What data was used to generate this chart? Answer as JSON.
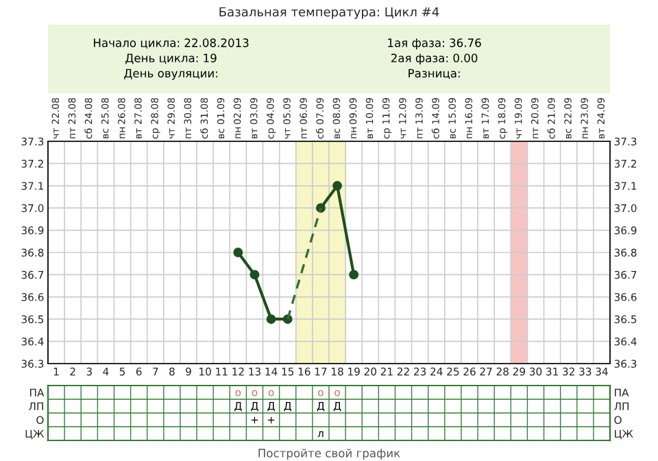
{
  "chart_data": [
    {
      "type": "line",
      "title": "Базальная температура: Цикл #4",
      "annotations": [
        "Начало цикла: 22.08.2013",
        "День цикла: 19",
        "День овуляции:",
        "1ая фаза: 36.76",
        "2ая фаза: 0.00",
        "Разница:",
        "Постройте свой график",
        "22.08",
        "23.08",
        "24.08",
        "25.08",
        "26.08",
        "27.08",
        "28.08",
        "29.08",
        "30.08",
        "31.08",
        "01.09",
        "02.09",
        "03.09",
        "04.09",
        "05.09",
        "06.09",
        "07.09",
        "08.09",
        "09.09",
        "10.09",
        "11.09",
        "12.09",
        "13.09",
        "14.09",
        "15.09",
        "16.09",
        "17.09",
        "18.09",
        "19.09",
        "20.09",
        "21.09",
        "22.09",
        "23.09",
        "24.09",
        "чт",
        "пт",
        "сб",
        "вс",
        "пн",
        "вт",
        "ср",
        "чт",
        "пт",
        "сб",
        "вс",
        "пн",
        "вт",
        "ср",
        "чт",
        "пт",
        "сб",
        "вс",
        "пн",
        "вт",
        "ср",
        "чт",
        "пт",
        "сб",
        "вс",
        "пн",
        "вт",
        "ср",
        "чт",
        "пт",
        "сб",
        "вс",
        "пн",
        "вт"
      ],
      "categories": [
        "1",
        "2",
        "3",
        "4",
        "5",
        "6",
        "7",
        "8",
        "9",
        "10",
        "11",
        "12",
        "13",
        "14",
        "15",
        "16",
        "17",
        "18",
        "19",
        "20",
        "21",
        "22",
        "23",
        "24",
        "25",
        "26",
        "27",
        "28",
        "29",
        "30",
        "31",
        "32",
        "33",
        "34"
      ],
      "series": [
        {
          "type": "line",
          "color": "#1f4f1f",
          "marker": "circle",
          "line_style": "solid",
          "values": [
            null,
            null,
            null,
            null,
            null,
            null,
            null,
            null,
            null,
            null,
            null,
            36.8,
            36.7,
            36.5,
            36.5,
            null,
            37.0,
            37.1,
            36.7,
            null,
            null,
            null,
            null,
            null,
            null,
            null,
            null,
            null,
            null,
            null,
            null,
            null,
            null,
            null
          ]
        },
        {
          "type": "line",
          "color": "#3a6a3a",
          "marker": "none",
          "line_style": "dashed",
          "x": [
            "15",
            "17"
          ],
          "values": [
            36.5,
            37.0
          ]
        }
      ],
      "ylim": [
        36.3,
        37.3
      ],
      "yticks": [
        {
          "value": 36.3,
          "label": "36.3"
        },
        {
          "value": 36.4,
          "label": "36.4"
        },
        {
          "value": 36.5,
          "label": "36.5"
        },
        {
          "value": 36.6,
          "label": "36.6"
        },
        {
          "value": 36.7,
          "label": "36.7"
        },
        {
          "value": 36.8,
          "label": "36.8"
        },
        {
          "value": 36.9,
          "label": "36.9"
        },
        {
          "value": 37.0,
          "label": "37.0"
        },
        {
          "value": 37.1,
          "label": "37.1"
        },
        {
          "value": 37.2,
          "label": "37.2"
        },
        {
          "value": 37.3,
          "label": "37.3"
        }
      ],
      "y2lim": [
        36.3,
        37.3
      ],
      "y2ticks": [
        {
          "value": 36.3,
          "label": "36.3"
        },
        {
          "value": 36.4,
          "label": "36.4"
        },
        {
          "value": 36.5,
          "label": "36.5"
        },
        {
          "value": 36.6,
          "label": "36.6"
        },
        {
          "value": 36.7,
          "label": "36.7"
        },
        {
          "value": 36.8,
          "label": "36.8"
        },
        {
          "value": 36.9,
          "label": "36.9"
        },
        {
          "value": 37.0,
          "label": "37.0"
        },
        {
          "value": 37.1,
          "label": "37.1"
        },
        {
          "value": 37.2,
          "label": "37.2"
        },
        {
          "value": 37.3,
          "label": "37.3"
        }
      ],
      "bands": [
        {
          "axis": "x",
          "from": "16",
          "to": "18",
          "color": "#f8f6c4"
        },
        {
          "axis": "x",
          "from": "29",
          "to": "29",
          "color": "#f7c4c4"
        }
      ],
      "grid": true
    },
    {
      "type": "heatmap",
      "categories": [
        "1",
        "2",
        "3",
        "4",
        "5",
        "6",
        "7",
        "8",
        "9",
        "10",
        "11",
        "12",
        "13",
        "14",
        "15",
        "16",
        "17",
        "18",
        "19",
        "20",
        "21",
        "22",
        "23",
        "24",
        "25",
        "26",
        "27",
        "28",
        "29",
        "30",
        "31",
        "32",
        "33",
        "34"
      ],
      "y_categories": [
        "ПА",
        "ЛП",
        "О",
        "ЦЖ"
      ],
      "y2_categories": [
        "ПА",
        "ЛП",
        "О",
        "ЦЖ"
      ],
      "tick_labels": "y",
      "grid": true,
      "cells": [
        [
          null,
          null,
          null,
          null,
          null,
          null,
          null,
          null,
          null,
          null,
          null,
          null,
          null,
          null,
          null,
          null,
          null,
          null,
          null,
          null,
          null,
          null,
          null,
          null,
          null,
          null,
          null,
          null,
          null,
          null,
          null,
          null,
          null,
          null
        ],
        [
          null,
          null,
          null,
          null,
          null,
          null,
          null,
          null,
          null,
          null,
          null,
          null,
          null,
          null,
          null,
          null,
          null,
          null,
          null,
          null,
          null,
          null,
          null,
          null,
          null,
          null,
          null,
          null,
          null,
          null,
          null,
          null,
          null,
          null
        ],
        [
          null,
          null,
          null,
          null,
          null,
          null,
          null,
          null,
          null,
          null,
          null,
          null,
          null,
          null,
          null,
          null,
          null,
          null,
          null,
          null,
          null,
          null,
          null,
          null,
          null,
          null,
          null,
          null,
          null,
          null,
          null,
          null,
          null,
          null
        ],
        [
          null,
          null,
          null,
          null,
          null,
          null,
          null,
          null,
          null,
          null,
          null,
          null,
          null,
          null,
          null,
          null,
          null,
          null,
          null,
          null,
          null,
          null,
          null,
          null,
          null,
          null,
          null,
          null,
          null,
          null,
          null,
          null,
          null,
          null
        ]
      ],
      "cell_labels": [
        [
          null,
          null,
          null,
          null,
          null,
          null,
          null,
          null,
          null,
          null,
          null,
          "o",
          "o",
          "o",
          null,
          null,
          "o",
          "o",
          null,
          null,
          null,
          null,
          null,
          null,
          null,
          null,
          null,
          null,
          null,
          null,
          null,
          null,
          null,
          null
        ],
        [
          null,
          null,
          null,
          null,
          null,
          null,
          null,
          null,
          null,
          null,
          null,
          "Д",
          "Д",
          "Д",
          "Д",
          null,
          "Д",
          "Д",
          null,
          null,
          null,
          null,
          null,
          null,
          null,
          null,
          null,
          null,
          null,
          null,
          null,
          null,
          null,
          null
        ],
        [
          null,
          null,
          null,
          null,
          null,
          null,
          null,
          null,
          null,
          null,
          null,
          null,
          "+",
          "+",
          null,
          null,
          null,
          null,
          null,
          null,
          null,
          null,
          null,
          null,
          null,
          null,
          null,
          null,
          null,
          null,
          null,
          null,
          null,
          null
        ],
        [
          null,
          null,
          null,
          null,
          null,
          null,
          null,
          null,
          null,
          null,
          null,
          null,
          null,
          null,
          null,
          null,
          "л",
          null,
          null,
          null,
          null,
          null,
          null,
          null,
          null,
          null,
          null,
          null,
          null,
          null,
          null,
          null,
          null,
          null
        ]
      ]
    }
  ]
}
